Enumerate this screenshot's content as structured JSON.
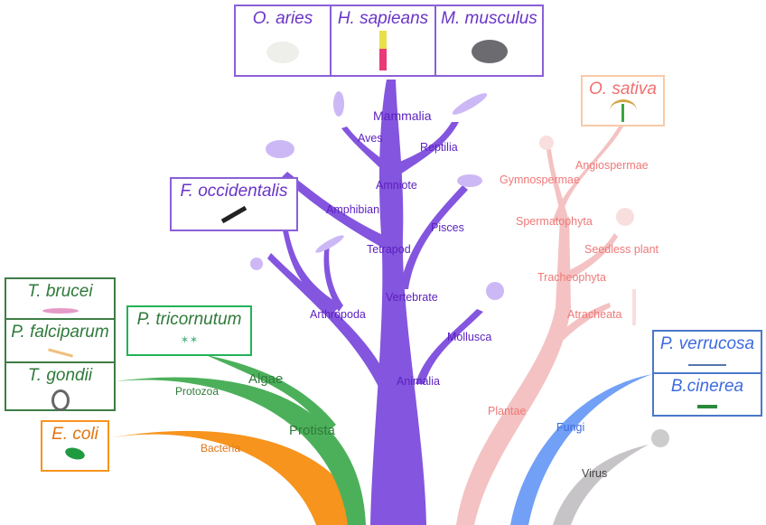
{
  "colors": {
    "animal": "#8455de",
    "plant": "#f4c2c2",
    "fungi": "#72a0f6",
    "virus": "#c7c4c7",
    "protista": "#4cb05a",
    "bacteria": "#f7941d",
    "animal_text": "#5a1fc0",
    "plant_text": "#f07878",
    "green_text": "#2f7a3a",
    "orange_text": "#e27412",
    "blue_text": "#3d6ae0"
  },
  "species": {
    "o_aries": "O. aries",
    "h_sapiens": "H. sapieans",
    "m_musculus": "M. musculus",
    "o_sativa": "O. sativa",
    "f_occidentalis": "F. occidentalis",
    "t_brucei": "T. brucei",
    "p_falciparum": "P. falciparum",
    "t_gondii": "T. gondii",
    "p_tricornutum": "P. tricornutum",
    "e_coli": "E. coli",
    "p_verrucosa": "P. verrucosa",
    "b_cinerea": "B.cinerea"
  },
  "taxa": {
    "mammalia": "Mammalia",
    "aves": "Aves",
    "reptilia": "Reptilia",
    "amniote": "Amniote",
    "amphibian": "Amphibian",
    "pisces": "Pisces",
    "tetrapod": "Tetrapod",
    "vertebrate": "Vertebrate",
    "arthropoda": "Arthropoda",
    "mollusca": "Mollusca",
    "animalia": "Animalia",
    "angiospermae": "Angiospermae",
    "gymnospermae": "Gymnospermae",
    "spermatophyta": "Spermatophyta",
    "seedless": "Seedless plant",
    "tracheophyta": "Tracheophyta",
    "atracheata": "Atracheata",
    "plantae": "Plantae",
    "fungi": "Fungi",
    "virus": "Virus",
    "algae": "Algae",
    "protozoa": "Protozoa",
    "protista": "Protista",
    "bacteria": "Bacteria"
  }
}
